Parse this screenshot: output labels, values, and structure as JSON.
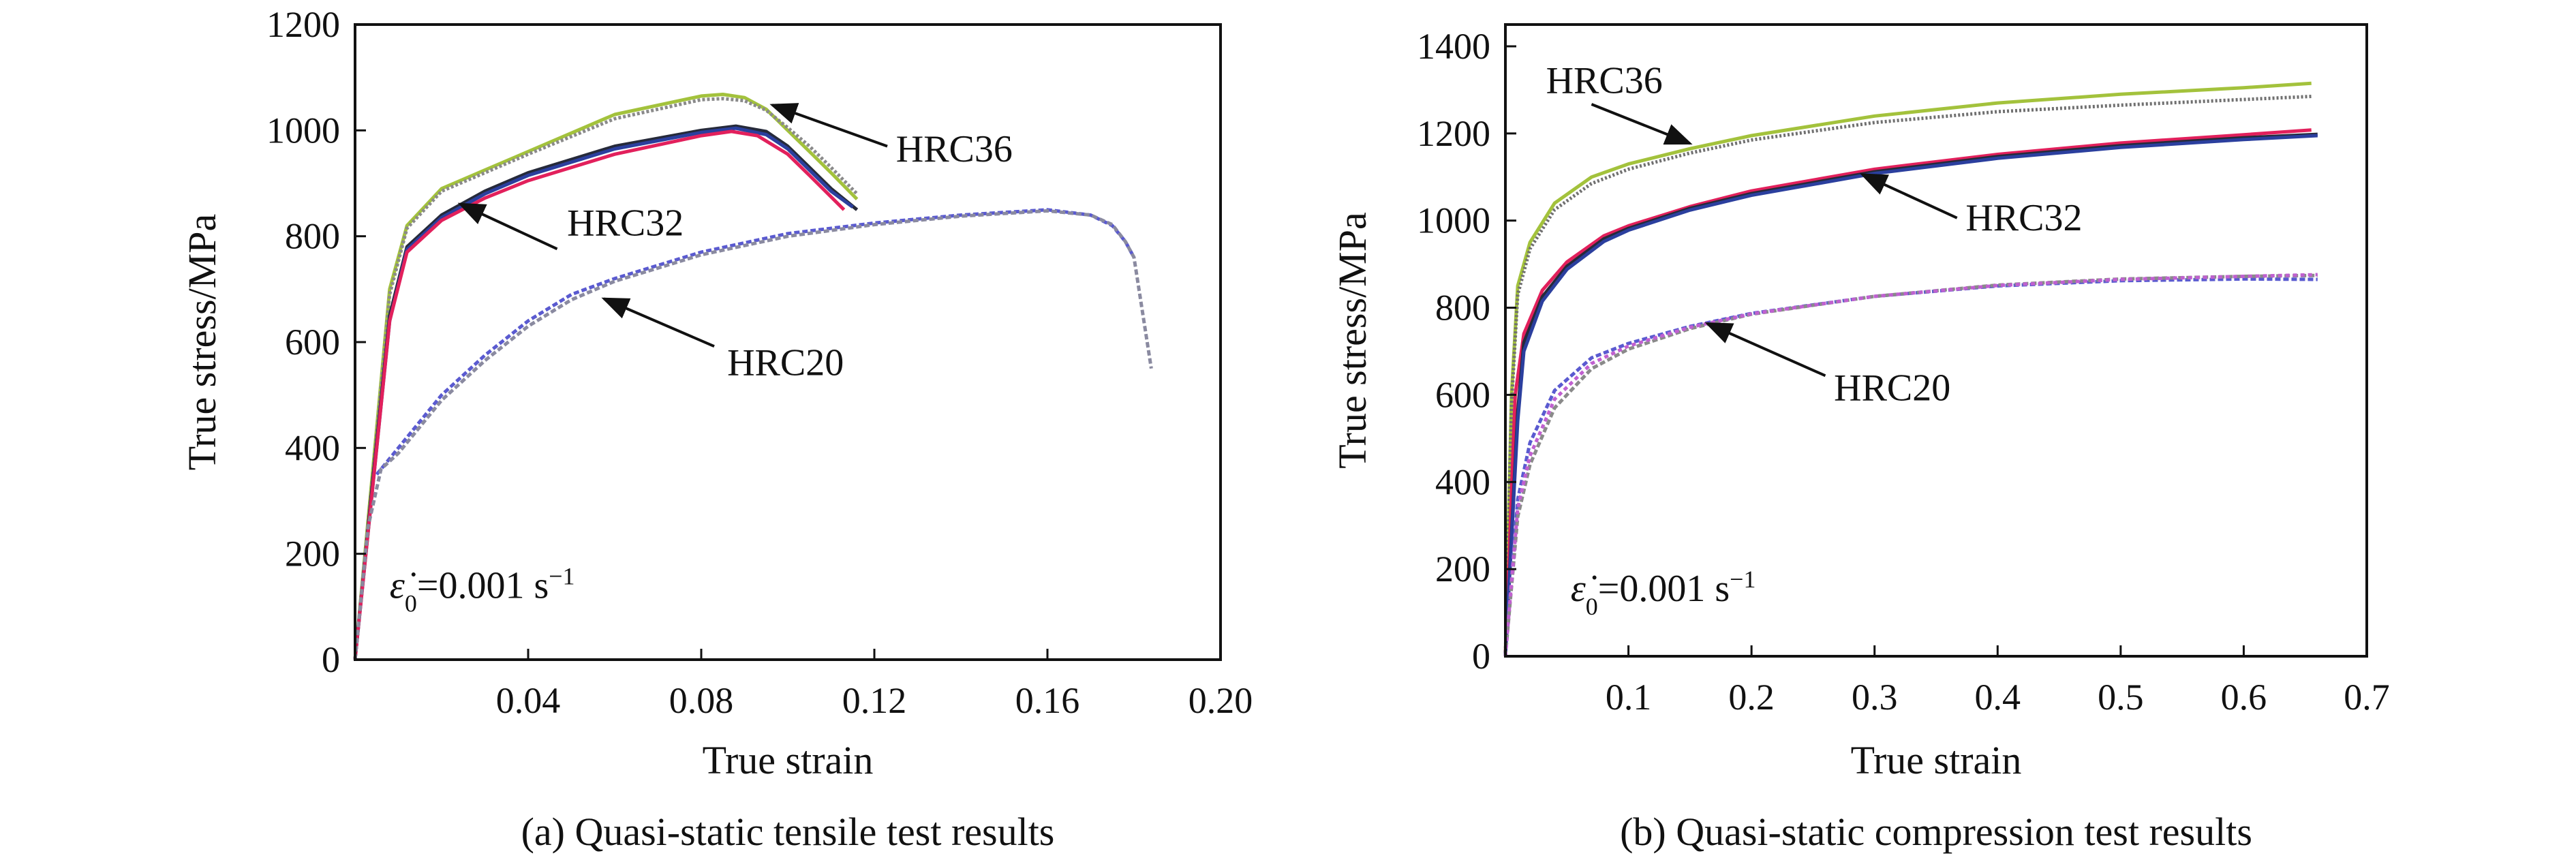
{
  "chart_data": [
    {
      "type": "line",
      "caption": "(a) Quasi-static tensile test results",
      "xlabel": "True strain",
      "ylabel": "True stress/MPa",
      "xlim": [
        0,
        0.2
      ],
      "ylim": [
        0,
        1200
      ],
      "xticks": [
        0.04,
        0.08,
        0.12,
        0.16,
        0.2
      ],
      "xtick_labels": [
        "0.04",
        "0.08",
        "0.12",
        "0.16",
        "0.20"
      ],
      "yticks": [
        0,
        200,
        400,
        600,
        800,
        1000,
        1200
      ],
      "ytick_labels": [
        "0",
        "200",
        "400",
        "600",
        "800",
        "1000",
        "1200"
      ],
      "grid": false,
      "rate_label": {
        "symbol": "ε̇",
        "sub": "0",
        "text": "=0.001 s",
        "sup": "−1",
        "x": 0.008,
        "y": 140
      },
      "annotations": [
        {
          "text": "HRC36",
          "x": 0.125,
          "y": 967,
          "arrow_from": [
            0.123,
            970
          ],
          "arrow_to": [
            0.0964,
            1048
          ]
        },
        {
          "text": "HRC32",
          "x": 0.049,
          "y": 827,
          "arrow_from": [
            0.0467,
            776
          ],
          "arrow_to": [
            0.0243,
            861
          ]
        },
        {
          "text": "HRC20",
          "x": 0.086,
          "y": 563,
          "arrow_from": [
            0.083,
            592
          ],
          "arrow_to": [
            0.0575,
            682
          ]
        }
      ],
      "series": [
        {
          "name": "HRC36-1",
          "color": "#a3c23c",
          "dash": "",
          "x": [
            0,
            0.004,
            0.008,
            0.012,
            0.02,
            0.03,
            0.04,
            0.06,
            0.08,
            0.085,
            0.09,
            0.095,
            0.1,
            0.105,
            0.11,
            0.116
          ],
          "y": [
            0,
            350,
            700,
            820,
            890,
            925,
            960,
            1030,
            1065,
            1068,
            1062,
            1040,
            1000,
            960,
            920,
            870
          ]
        },
        {
          "name": "HRC36-2",
          "color": "#8a8a8a",
          "dash": "4 3",
          "x": [
            0,
            0.004,
            0.008,
            0.012,
            0.02,
            0.03,
            0.04,
            0.06,
            0.08,
            0.085,
            0.09,
            0.095,
            0.1,
            0.105,
            0.11,
            0.116
          ],
          "y": [
            0,
            340,
            690,
            815,
            885,
            920,
            955,
            1022,
            1058,
            1060,
            1056,
            1038,
            1005,
            970,
            930,
            880
          ]
        },
        {
          "name": "HRC32-1",
          "color": "#262a3a",
          "dash": "",
          "x": [
            0,
            0.004,
            0.008,
            0.012,
            0.02,
            0.03,
            0.04,
            0.06,
            0.08,
            0.088,
            0.095,
            0.1,
            0.105,
            0.11,
            0.116
          ],
          "y": [
            0,
            330,
            650,
            780,
            840,
            885,
            920,
            970,
            1000,
            1008,
            998,
            970,
            930,
            890,
            850
          ]
        },
        {
          "name": "HRC32-2",
          "color": "#2b3f9e",
          "dash": "",
          "x": [
            0,
            0.004,
            0.008,
            0.012,
            0.02,
            0.03,
            0.04,
            0.06,
            0.08,
            0.088,
            0.095,
            0.1,
            0.105,
            0.11,
            0.115
          ],
          "y": [
            0,
            320,
            640,
            775,
            835,
            880,
            915,
            965,
            996,
            1004,
            992,
            965,
            925,
            885,
            855
          ]
        },
        {
          "name": "HRC32-3",
          "color": "#e2205c",
          "dash": "",
          "x": [
            0,
            0.004,
            0.008,
            0.012,
            0.02,
            0.03,
            0.04,
            0.06,
            0.08,
            0.087,
            0.093,
            0.1,
            0.105,
            0.113
          ],
          "y": [
            0,
            320,
            640,
            770,
            830,
            872,
            905,
            955,
            990,
            998,
            990,
            955,
            915,
            850
          ]
        },
        {
          "name": "HRC20-1",
          "color": "#5a5ad0",
          "dash": "8 4",
          "x": [
            0.005,
            0.01,
            0.02,
            0.03,
            0.04,
            0.05,
            0.06,
            0.08,
            0.1,
            0.12,
            0.14,
            0.16,
            0.17,
            0.175,
            0.178,
            0.18
          ],
          "y": [
            350,
            400,
            500,
            575,
            640,
            690,
            720,
            770,
            805,
            825,
            840,
            850,
            840,
            820,
            790,
            760
          ]
        },
        {
          "name": "HRC20-2",
          "color": "#8a8aa0",
          "dash": "8 4",
          "x": [
            0,
            0.003,
            0.006,
            0.01,
            0.02,
            0.03,
            0.04,
            0.05,
            0.06,
            0.08,
            0.1,
            0.12,
            0.14,
            0.16,
            0.17,
            0.175,
            0.178,
            0.18,
            0.184
          ],
          "y": [
            0,
            250,
            360,
            390,
            490,
            565,
            630,
            680,
            715,
            765,
            800,
            822,
            838,
            848,
            840,
            822,
            790,
            760,
            550
          ]
        }
      ]
    },
    {
      "type": "line",
      "caption": "(b) Quasi-static compression test results",
      "xlabel": "True strain",
      "ylabel": "True stress/MPa",
      "xlim": [
        0,
        0.7
      ],
      "ylim": [
        0,
        1450
      ],
      "xticks": [
        0.1,
        0.2,
        0.3,
        0.4,
        0.5,
        0.6,
        0.7
      ],
      "xtick_labels": [
        "0.1",
        "0.2",
        "0.3",
        "0.4",
        "0.5",
        "0.6",
        "0.7"
      ],
      "yticks": [
        0,
        200,
        400,
        600,
        800,
        1000,
        1200,
        1400
      ],
      "ytick_labels": [
        "0",
        "200",
        "400",
        "600",
        "800",
        "1000",
        "1200",
        "1400"
      ],
      "grid": false,
      "rate_label": {
        "symbol": "ε̇",
        "sub": "0",
        "text": "=0.001 s",
        "sup": "−1",
        "x": 0.053,
        "y": 155
      },
      "annotations": [
        {
          "text": "HRC36",
          "x": 0.033,
          "y": 1324,
          "arrow_from": [
            0.07,
            1267
          ],
          "arrow_to": [
            0.15,
            1177
          ]
        },
        {
          "text": "HRC32",
          "x": 0.374,
          "y": 1009,
          "arrow_from": [
            0.367,
            1006
          ],
          "arrow_to": [
            0.29,
            1106
          ]
        },
        {
          "text": "HRC20",
          "x": 0.267,
          "y": 619,
          "arrow_from": [
            0.26,
            644
          ],
          "arrow_to": [
            0.164,
            764
          ]
        }
      ],
      "series": [
        {
          "name": "HRC36-1",
          "color": "#a3c23c",
          "dash": "",
          "x": [
            0,
            0.005,
            0.01,
            0.02,
            0.04,
            0.07,
            0.1,
            0.15,
            0.2,
            0.3,
            0.4,
            0.5,
            0.6,
            0.655
          ],
          "y": [
            0,
            600,
            850,
            950,
            1040,
            1100,
            1130,
            1165,
            1195,
            1240,
            1270,
            1290,
            1305,
            1315
          ]
        },
        {
          "name": "HRC36-2",
          "color": "#707070",
          "dash": "3 3",
          "x": [
            0,
            0.005,
            0.01,
            0.02,
            0.04,
            0.07,
            0.1,
            0.15,
            0.2,
            0.3,
            0.4,
            0.5,
            0.6,
            0.655
          ],
          "y": [
            0,
            580,
            830,
            935,
            1025,
            1085,
            1118,
            1155,
            1185,
            1225,
            1250,
            1265,
            1278,
            1285
          ]
        },
        {
          "name": "HRC32-1",
          "color": "#e2205c",
          "dash": "",
          "x": [
            0,
            0.008,
            0.015,
            0.03,
            0.05,
            0.08,
            0.1,
            0.15,
            0.2,
            0.3,
            0.4,
            0.5,
            0.6,
            0.655
          ],
          "y": [
            0,
            600,
            740,
            840,
            905,
            965,
            988,
            1032,
            1068,
            1118,
            1152,
            1178,
            1197,
            1208
          ]
        },
        {
          "name": "HRC32-2",
          "color": "#262a3a",
          "dash": "",
          "x": [
            0,
            0.01,
            0.015,
            0.03,
            0.05,
            0.08,
            0.1,
            0.15,
            0.2,
            0.3,
            0.4,
            0.5,
            0.6,
            0.66
          ],
          "y": [
            0,
            560,
            720,
            825,
            895,
            958,
            982,
            1028,
            1062,
            1112,
            1147,
            1172,
            1190,
            1198
          ]
        },
        {
          "name": "HRC32-3",
          "color": "#2b3f9e",
          "dash": "",
          "x": [
            0,
            0.01,
            0.015,
            0.03,
            0.05,
            0.08,
            0.1,
            0.15,
            0.2,
            0.3,
            0.4,
            0.5,
            0.6,
            0.66
          ],
          "y": [
            0,
            540,
            700,
            815,
            888,
            952,
            978,
            1024,
            1058,
            1108,
            1143,
            1168,
            1186,
            1195
          ]
        },
        {
          "name": "HRC20-1",
          "color": "#5a5ad0",
          "dash": "8 4",
          "x": [
            0,
            0.01,
            0.02,
            0.04,
            0.07,
            0.1,
            0.15,
            0.2,
            0.3,
            0.4,
            0.5,
            0.6,
            0.66
          ],
          "y": [
            0,
            360,
            490,
            610,
            685,
            718,
            757,
            787,
            826,
            850,
            862,
            866,
            865
          ]
        },
        {
          "name": "HRC20-2",
          "color": "#8a8a8a",
          "dash": "8 4",
          "x": [
            0,
            0.01,
            0.02,
            0.04,
            0.07,
            0.1,
            0.15,
            0.2,
            0.3,
            0.4,
            0.5,
            0.6,
            0.66
          ],
          "y": [
            0,
            320,
            440,
            570,
            660,
            705,
            752,
            785,
            826,
            852,
            866,
            872,
            874
          ]
        },
        {
          "name": "HRC20-3",
          "color": "#c060d0",
          "dash": "6 5",
          "x": [
            0,
            0.01,
            0.02,
            0.04,
            0.07,
            0.1,
            0.15,
            0.2,
            0.3,
            0.4,
            0.5,
            0.6,
            0.66
          ],
          "y": [
            0,
            340,
            460,
            590,
            672,
            712,
            755,
            786,
            826,
            851,
            865,
            872,
            876
          ]
        }
      ]
    }
  ]
}
